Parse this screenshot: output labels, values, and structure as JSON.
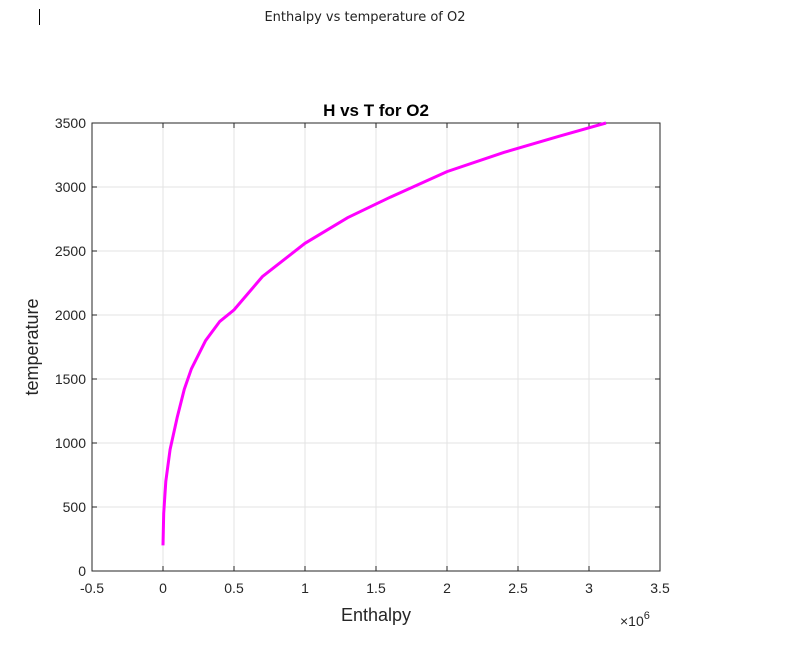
{
  "page": {
    "title": "Enthalpy vs temperature of O2"
  },
  "chart_data": {
    "type": "line",
    "title": "H vs T for O2",
    "xlabel": "Enthalpy",
    "ylabel": "temperature",
    "x_exponent_label": "×10",
    "x_exponent": "6",
    "xlim": [
      -500000.0,
      3500000.0
    ],
    "ylim": [
      0,
      3500
    ],
    "grid": true,
    "legend": null,
    "x_ticks": [
      -0.5,
      0,
      0.5,
      1,
      1.5,
      2,
      2.5,
      3,
      3.5
    ],
    "x_tick_labels": [
      "-0.5",
      "0",
      "0.5",
      "1",
      "1.5",
      "2",
      "2.5",
      "3",
      "3.5"
    ],
    "y_ticks": [
      0,
      500,
      1000,
      1500,
      2000,
      2500,
      3000,
      3500
    ],
    "y_tick_labels": [
      "0",
      "500",
      "1000",
      "1500",
      "2000",
      "2500",
      "3000",
      "3500"
    ],
    "line_color": "#ff00ff",
    "series": [
      {
        "name": "H vs T",
        "x": [
          0,
          5000,
          20000,
          50000,
          100000,
          150000,
          200000,
          300000,
          400000,
          500000,
          700000,
          1000000,
          1300000,
          1600000,
          2000000,
          2400000,
          2800000,
          3120000
        ],
        "y": [
          200,
          450,
          700,
          950,
          1200,
          1420,
          1580,
          1800,
          1950,
          2040,
          2300,
          2560,
          2760,
          2920,
          3120,
          3270,
          3400,
          3500
        ]
      }
    ]
  }
}
